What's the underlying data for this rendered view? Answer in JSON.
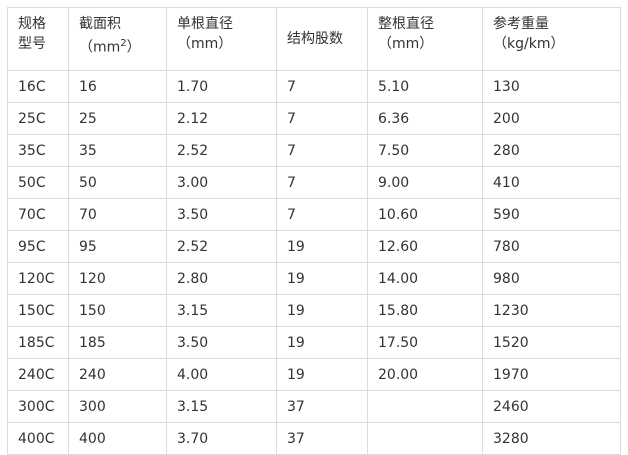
{
  "table": {
    "headers": [
      {
        "line1": "规格",
        "line2": "型号"
      },
      {
        "line1": "截面积",
        "line2": "（mm",
        "sup": "2",
        "line2_end": "）"
      },
      {
        "line1": "单根直径",
        "line2": "（mm）"
      },
      {
        "line1": "结构股数",
        "line2": ""
      },
      {
        "line1": "整根直径",
        "line2": "（mm）"
      },
      {
        "line1": "参考重量",
        "line2": "（kg/km）"
      }
    ],
    "rows": [
      [
        "16C",
        "16",
        "1.70",
        "7",
        "5.10",
        "130"
      ],
      [
        "25C",
        "25",
        "2.12",
        "7",
        "6.36",
        "200"
      ],
      [
        "35C",
        "35",
        "2.52",
        "7",
        "7.50",
        "280"
      ],
      [
        "50C",
        "50",
        "3.00",
        "7",
        "9.00",
        "410"
      ],
      [
        "70C",
        "70",
        "3.50",
        "7",
        "10.60",
        "590"
      ],
      [
        "95C",
        "95",
        "2.52",
        "19",
        "12.60",
        "780"
      ],
      [
        "120C",
        "120",
        "2.80",
        "19",
        "14.00",
        "980"
      ],
      [
        "150C",
        "150",
        "3.15",
        "19",
        "15.80",
        "1230"
      ],
      [
        "185C",
        "185",
        "3.50",
        "19",
        "17.50",
        "1520"
      ],
      [
        "240C",
        "240",
        "4.00",
        "19",
        "20.00",
        "1970"
      ],
      [
        "300C",
        "300",
        "3.15",
        "37",
        "",
        "2460"
      ],
      [
        "400C",
        "400",
        "3.70",
        "37",
        "",
        "3280"
      ]
    ]
  }
}
